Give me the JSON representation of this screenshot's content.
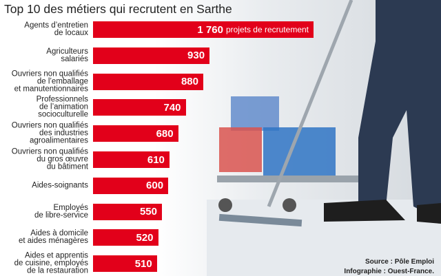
{
  "chart_data": {
    "type": "bar",
    "orientation": "horizontal",
    "title": "Top 10 des métiers qui recrutent en Sarthe",
    "categories": [
      "Agents d’entretien\nde locaux",
      "Agriculteurs\nsalariés",
      "Ouvriers non qualifiés\nde l’emballage\net manutentionnaires",
      "Professionnels\nde l’animation\nsocioculturelle",
      "Ouvriers non qualifiés\ndes industries\nagroalimentaires",
      "Ouvriers non qualifiés\ndu gros œuvre\ndu bâtiment",
      "Aides-soignants",
      "Employés\nde libre-service",
      "Aides à domicile\net aides ménagères",
      "Aides et apprentis\nde cuisine, employés\nde la restauration"
    ],
    "values": [
      1760,
      930,
      880,
      740,
      680,
      610,
      600,
      550,
      520,
      510
    ],
    "value_labels": [
      "1 760",
      "930",
      "880",
      "740",
      "680",
      "610",
      "600",
      "550",
      "520",
      "510"
    ],
    "annotation": "projets de recrutement",
    "color": "#e2001a",
    "source": "Source : Pôle Emploi",
    "credit": "Infographie : Ouest-France."
  }
}
